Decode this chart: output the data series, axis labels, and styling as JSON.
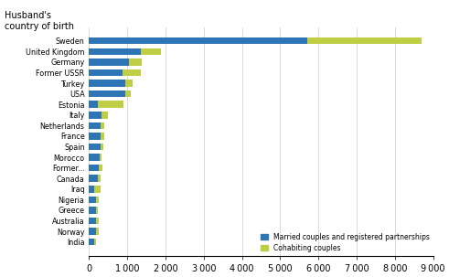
{
  "title": "Husband's\ncountry of birth",
  "categories": [
    "India",
    "Norway",
    "Australia",
    "Greece",
    "Nigeria",
    "Iraq",
    "Canada",
    "Former...",
    "Morocco",
    "Spain",
    "France",
    "Netherlands",
    "Italy",
    "Estonia",
    "USA",
    "Turkey",
    "Former USSR",
    "Germany",
    "United Kingdom",
    "Sweden"
  ],
  "married": [
    130,
    180,
    180,
    180,
    190,
    130,
    230,
    260,
    270,
    290,
    300,
    310,
    320,
    230,
    950,
    950,
    870,
    1050,
    1350,
    5700
  ],
  "cohabiting": [
    50,
    75,
    75,
    60,
    55,
    180,
    75,
    85,
    45,
    95,
    90,
    90,
    180,
    680,
    130,
    180,
    480,
    330,
    520,
    3000
  ],
  "bar_color_married": "#2E75B6",
  "bar_color_cohabiting": "#BFCE44",
  "xlim": [
    0,
    9000
  ],
  "xticks": [
    0,
    1000,
    2000,
    3000,
    4000,
    5000,
    6000,
    7000,
    8000,
    9000
  ],
  "legend_married": "Married couples and registered partnerships",
  "legend_cohabiting": "Cohabiting couples",
  "background_color": "#ffffff",
  "grid_color": "#cccccc"
}
